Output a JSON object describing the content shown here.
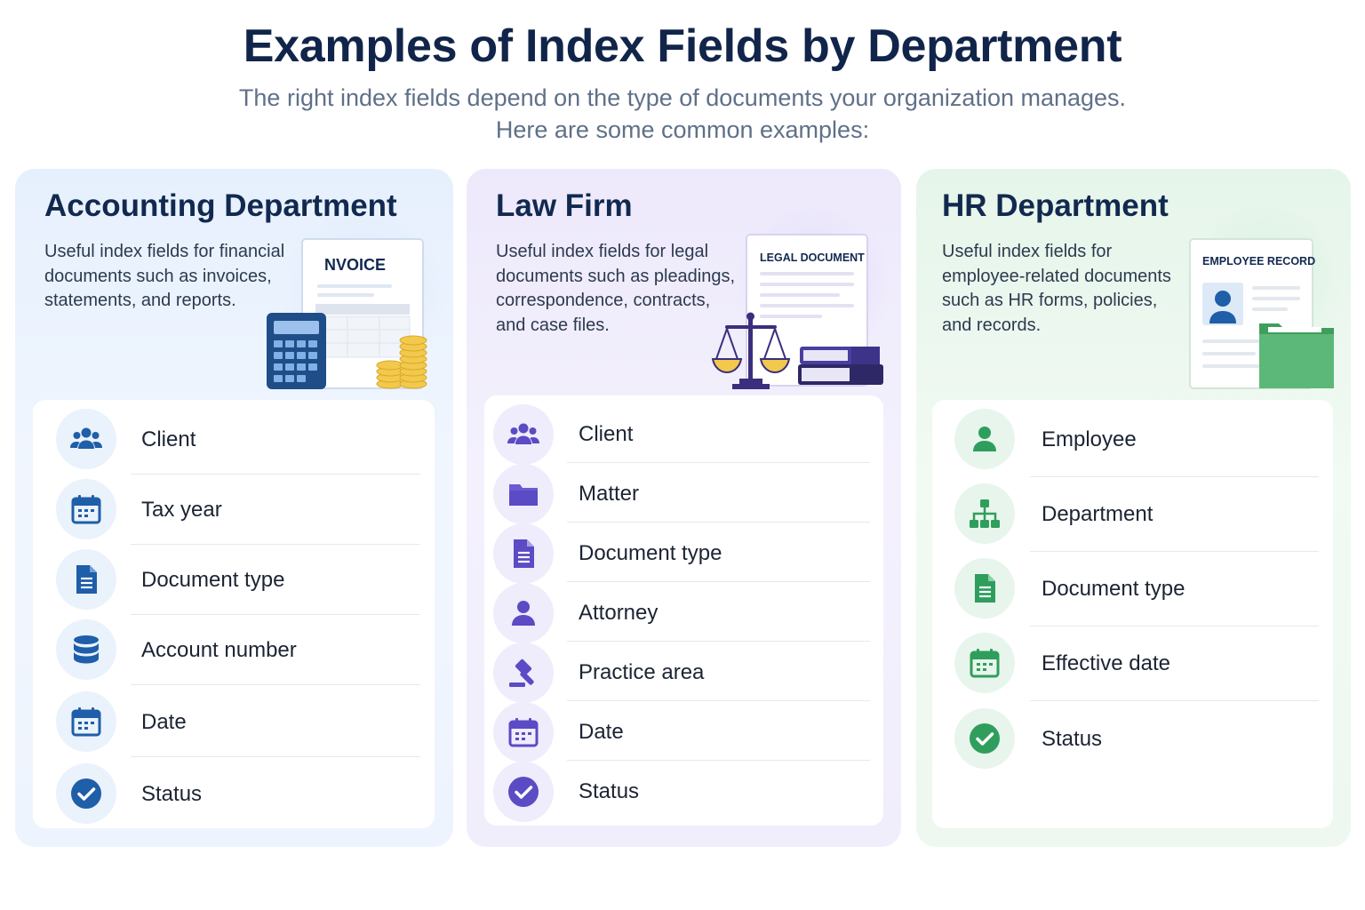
{
  "title": "Examples of Index Fields by Department",
  "subtitle_line1": "The right index fields depend on the type of documents your organization manages.",
  "subtitle_line2": "Here are some common examples:",
  "colors": {
    "accounting": "#1f5ea8",
    "law": "#5b4bc4",
    "hr": "#2f9e5c",
    "heading": "#12294f"
  },
  "departments": [
    {
      "name": "Accounting Department",
      "description": "Useful index fields for financial documents such as invoices, statements, and reports.",
      "illustration_label": "NVOICE",
      "fields": [
        {
          "label": "Client",
          "icon": "users-icon"
        },
        {
          "label": "Tax year",
          "icon": "calendar-icon"
        },
        {
          "label": "Document type",
          "icon": "document-icon"
        },
        {
          "label": "Account number",
          "icon": "database-icon"
        },
        {
          "label": "Date",
          "icon": "calendar-icon"
        },
        {
          "label": "Status",
          "icon": "check-circle-icon"
        }
      ]
    },
    {
      "name": "Law Firm",
      "description": "Useful index fields for legal documents such as pleadings, correspondence, contracts, and case files.",
      "illustration_label": "LEGAL DOCUMENT",
      "fields": [
        {
          "label": "Client",
          "icon": "users-icon"
        },
        {
          "label": "Matter",
          "icon": "folder-icon"
        },
        {
          "label": "Document type",
          "icon": "document-icon"
        },
        {
          "label": "Attorney",
          "icon": "person-icon"
        },
        {
          "label": "Practice area",
          "icon": "gavel-icon"
        },
        {
          "label": "Date",
          "icon": "calendar-icon"
        },
        {
          "label": "Status",
          "icon": "check-circle-icon"
        }
      ]
    },
    {
      "name": "HR Department",
      "description": "Useful index fields for employee-related documents such as HR forms, policies, and records.",
      "illustration_label": "EMPLOYEE RECORD",
      "fields": [
        {
          "label": "Employee",
          "icon": "person-icon"
        },
        {
          "label": "Department",
          "icon": "org-chart-icon"
        },
        {
          "label": "Document type",
          "icon": "document-icon"
        },
        {
          "label": "Effective date",
          "icon": "calendar-icon"
        },
        {
          "label": "Status",
          "icon": "check-circle-icon"
        }
      ]
    }
  ]
}
